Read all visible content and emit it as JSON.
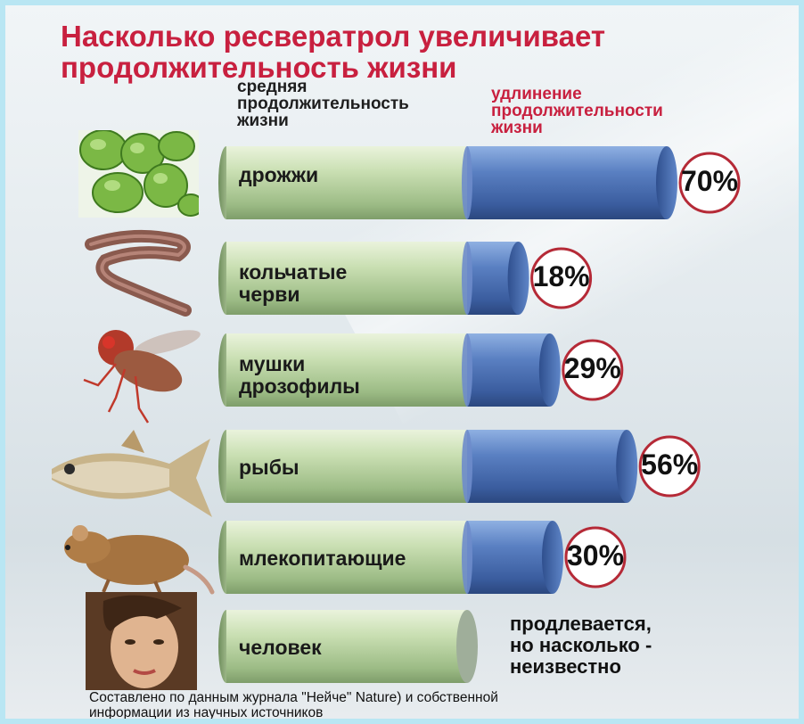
{
  "title_line1": "Насколько ресвератрол увеличивает",
  "title_line2": "продолжительность жизни",
  "source_note": "Составлено по данным журнала \"Нейче\" Nature) и собственной\nинформации из научных источников",
  "colors": {
    "title": "#c8203f",
    "green_bar": "#b9d4a0",
    "blue_bar": "#4f73b3",
    "circle_border": "#b52a37"
  },
  "chart_data": {
    "type": "bar",
    "orientation": "horizontal",
    "title": "Насколько ресвератрол увеличивает продолжительность жизни",
    "legend": [
      {
        "name": "средняя продолжительность жизни",
        "color": "#b9d4a0"
      },
      {
        "name": "удлинение продолжительности жизни",
        "color": "#4f73b3"
      }
    ],
    "categories": [
      "дрожжи",
      "кольчатые\nчерви",
      "мушки\nдрозофилы",
      "рыбы",
      "млекопитающие",
      "человек"
    ],
    "category_icons": [
      "yeast-cells",
      "worm",
      "fruit-fly",
      "fish",
      "rat",
      "woman-face"
    ],
    "series": [
      {
        "name": "средняя продолжительность жизни",
        "values": [
          100,
          100,
          100,
          100,
          100,
          100
        ]
      },
      {
        "name": "удлинение продолжительности жизни",
        "values": [
          70,
          18,
          29,
          56,
          30,
          null
        ]
      }
    ],
    "data_labels": [
      "70%",
      "18%",
      "29%",
      "56%",
      "30%",
      "продлевается,\nно насколько -\nнеизвестно"
    ],
    "unit": "%"
  }
}
